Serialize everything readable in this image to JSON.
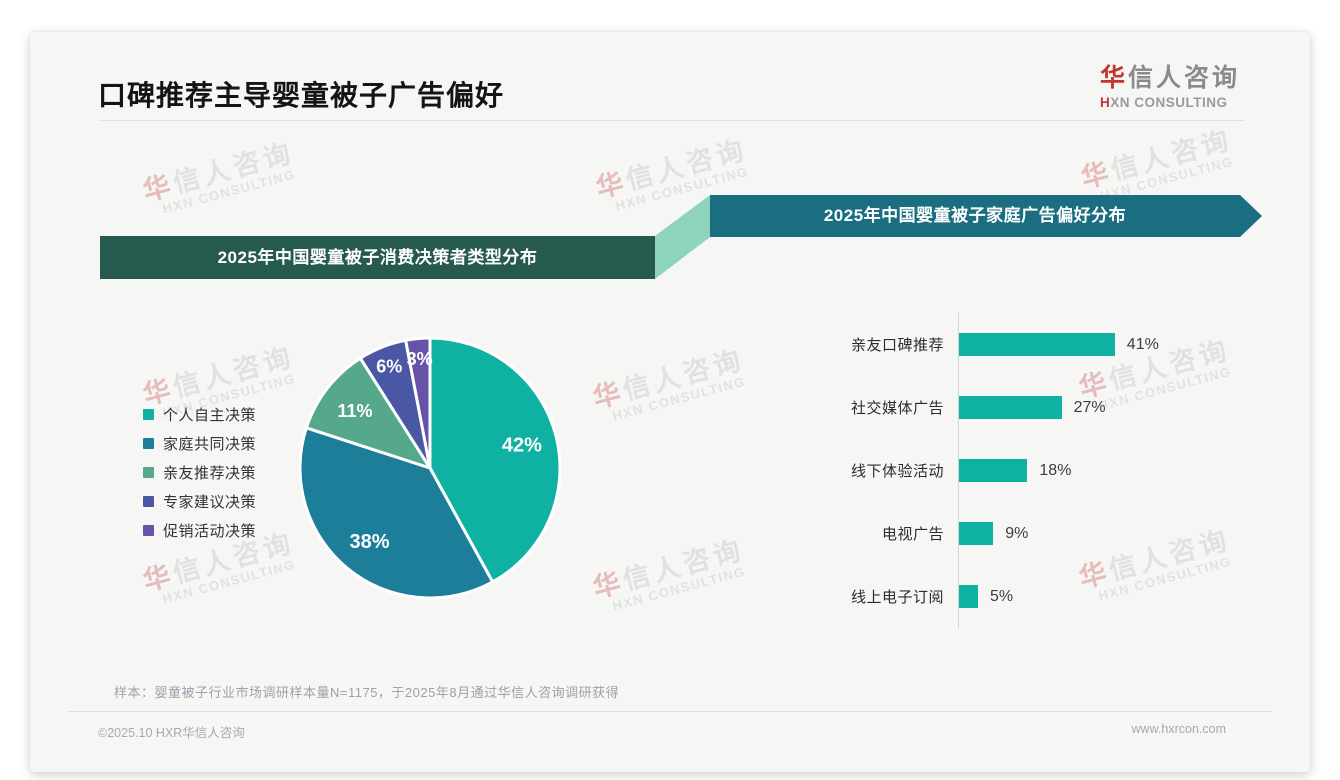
{
  "page": {
    "title": "口碑推荐主导婴童被子广告偏好",
    "logo": {
      "cn_first": "华",
      "cn_rest": "信人咨询",
      "en_first": "H",
      "en_rest": "XN CONSULTING"
    },
    "watermark": {
      "cn_first": "华",
      "cn_rest": "信人咨询",
      "en": "HXN CONSULTING"
    },
    "footnote": "样本：婴童被子行业市场调研样本量N=1175，于2025年8月通过华信人咨询调研获得",
    "footer": {
      "copyright": "©2025.10 HXR华信人咨询",
      "website": "www.hxrcon.com"
    }
  },
  "colors": {
    "banner_left_bg": "#275a4f",
    "banner_connector": "#8ed3bb",
    "banner_right_bg": "#1a6e80",
    "bar_fill": "#0fb2a2",
    "card_bg": "#f6f6f4"
  },
  "chart_data": [
    {
      "type": "pie",
      "title": "2025年中国婴童被子消费决策者类型分布",
      "categories": [
        "个人自主决策",
        "家庭共同决策",
        "亲友推荐决策",
        "专家建议决策",
        "促销活动决策"
      ],
      "values": [
        42,
        38,
        11,
        6,
        3
      ],
      "unit": "%",
      "slice_colors": [
        "#0fb2a2",
        "#1d7e99",
        "#55a88a",
        "#4a57a5",
        "#6852a8"
      ],
      "labels": [
        "42%",
        "38%",
        "11%",
        "6%",
        "3%"
      ],
      "start_angle_deg": 0,
      "direction": "clockwise",
      "legend_position": "left"
    },
    {
      "type": "bar",
      "title": "2025年中国婴童被子家庭广告偏好分布",
      "orientation": "horizontal",
      "categories": [
        "亲友口碑推荐",
        "社交媒体广告",
        "线下体验活动",
        "电视广告",
        "线上电子订阅"
      ],
      "values": [
        41,
        27,
        18,
        9,
        5
      ],
      "labels": [
        "41%",
        "27%",
        "18%",
        "9%",
        "5%"
      ],
      "unit": "%",
      "xlim": [
        0,
        45
      ],
      "grid": false,
      "value_labels": "outside-right"
    }
  ]
}
